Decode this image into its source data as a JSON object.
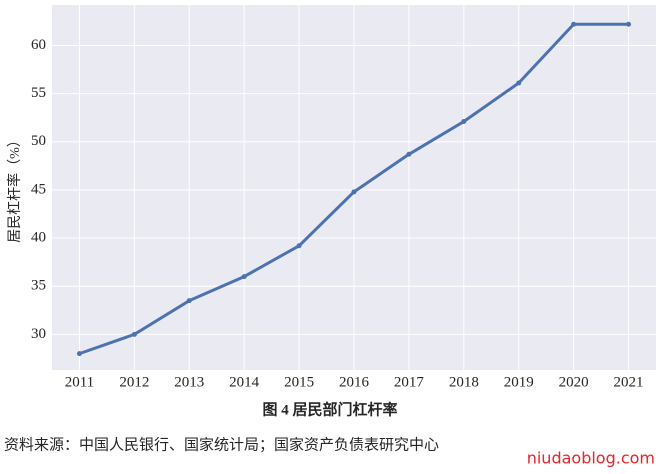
{
  "chart_data": {
    "type": "line",
    "y_label": "居民杠杆率（%）",
    "caption": "图 4  居民部门杠杆率",
    "source": "资料来源：中国人民银行、国家统计局；国家资产负债表研究中心",
    "watermark": "niudaoblog.com",
    "x": [
      2011,
      2012,
      2013,
      2014,
      2015,
      2016,
      2017,
      2018,
      2019,
      2020,
      2021
    ],
    "series": [
      {
        "color": "#4c72b0",
        "values": [
          28.0,
          30.0,
          33.5,
          36.0,
          39.2,
          44.8,
          48.7,
          52.1,
          56.1,
          62.2,
          62.2
        ]
      }
    ],
    "xlim": [
      2010.5,
      2021.5
    ],
    "xticks": [
      2011,
      2012,
      2013,
      2014,
      2015,
      2016,
      2017,
      2018,
      2019,
      2020,
      2021
    ],
    "ylim": [
      26.3,
      64.2
    ],
    "yticks": [
      30,
      35,
      40,
      45,
      50,
      55,
      60
    ],
    "grid": true,
    "background": "#eaeaf2"
  }
}
